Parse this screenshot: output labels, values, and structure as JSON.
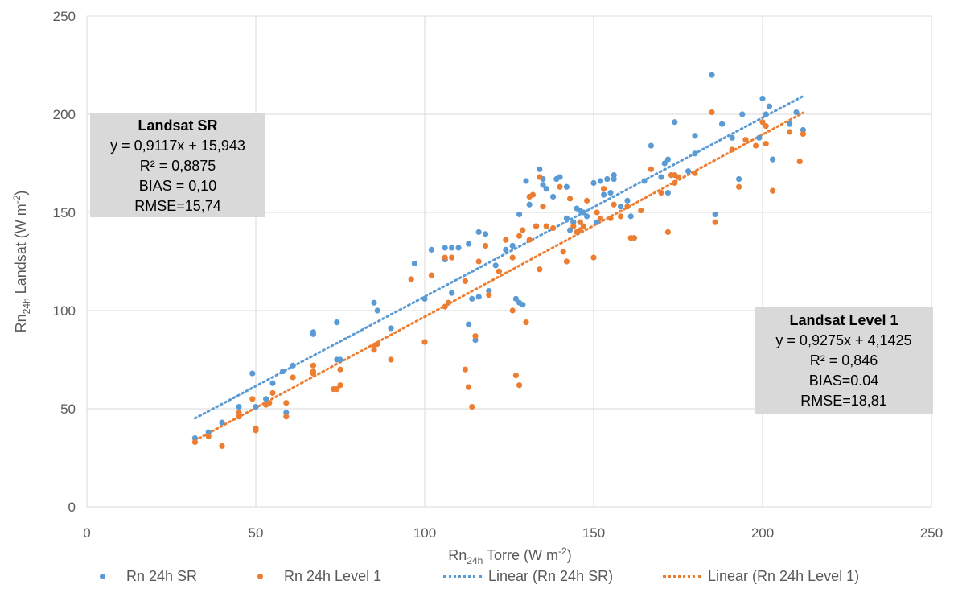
{
  "chart_data": {
    "type": "scatter",
    "xlabel": {
      "main1": "Rn",
      "sub": "24h",
      "main2": " Torre (W m",
      "sup": "-2",
      "end": ")"
    },
    "ylabel": {
      "main1": "Rn",
      "sub": "24h",
      "main2": " Landsat (W m",
      "sup": "-2",
      "end": ")"
    },
    "xlim": [
      0,
      250
    ],
    "ylim": [
      0,
      250
    ],
    "xticks": [
      "0",
      "50",
      "100",
      "150",
      "200",
      "250"
    ],
    "yticks": [
      "0",
      "50",
      "100",
      "150",
      "200",
      "250"
    ],
    "grid": true,
    "legend_position": "bottom",
    "series": [
      {
        "name": "Rn 24h SR",
        "color": "#5b9bd5",
        "points": [
          [
            32,
            35
          ],
          [
            36,
            38
          ],
          [
            40,
            43
          ],
          [
            45,
            51
          ],
          [
            49,
            68
          ],
          [
            50,
            51
          ],
          [
            53,
            55
          ],
          [
            55,
            63
          ],
          [
            58,
            69
          ],
          [
            59,
            48
          ],
          [
            61,
            72
          ],
          [
            67,
            89
          ],
          [
            67,
            88
          ],
          [
            74,
            75
          ],
          [
            74,
            94
          ],
          [
            75,
            75
          ],
          [
            85,
            104
          ],
          [
            86,
            100
          ],
          [
            90,
            91
          ],
          [
            97,
            124
          ],
          [
            100,
            106
          ],
          [
            102,
            131
          ],
          [
            106,
            132
          ],
          [
            106,
            126
          ],
          [
            108,
            109
          ],
          [
            108,
            132
          ],
          [
            110,
            132
          ],
          [
            113,
            134
          ],
          [
            113,
            93
          ],
          [
            114,
            106
          ],
          [
            115,
            85
          ],
          [
            116,
            107
          ],
          [
            116,
            140
          ],
          [
            118,
            139
          ],
          [
            119,
            110
          ],
          [
            121,
            123
          ],
          [
            124,
            131
          ],
          [
            126,
            133
          ],
          [
            127,
            106
          ],
          [
            128,
            149
          ],
          [
            129,
            103
          ],
          [
            128,
            104
          ],
          [
            130,
            166
          ],
          [
            131,
            154
          ],
          [
            133,
            143
          ],
          [
            134,
            172
          ],
          [
            135,
            167
          ],
          [
            135,
            164
          ],
          [
            136,
            162
          ],
          [
            138,
            158
          ],
          [
            139,
            167
          ],
          [
            140,
            168
          ],
          [
            142,
            147
          ],
          [
            142,
            163
          ],
          [
            143,
            141
          ],
          [
            144,
            145
          ],
          [
            145,
            152
          ],
          [
            146,
            151
          ],
          [
            146,
            145
          ],
          [
            147,
            150
          ],
          [
            148,
            148
          ],
          [
            150,
            165
          ],
          [
            151,
            145
          ],
          [
            152,
            166
          ],
          [
            153,
            159
          ],
          [
            154,
            167
          ],
          [
            155,
            160
          ],
          [
            156,
            167
          ],
          [
            156,
            169
          ],
          [
            158,
            153
          ],
          [
            160,
            156
          ],
          [
            161,
            148
          ],
          [
            162,
            137
          ],
          [
            165,
            166
          ],
          [
            167,
            184
          ],
          [
            170,
            168
          ],
          [
            171,
            175
          ],
          [
            172,
            160
          ],
          [
            172,
            177
          ],
          [
            173,
            169
          ],
          [
            174,
            196
          ],
          [
            178,
            171
          ],
          [
            180,
            189
          ],
          [
            180,
            180
          ],
          [
            185,
            220
          ],
          [
            186,
            149
          ],
          [
            188,
            195
          ],
          [
            191,
            188
          ],
          [
            193,
            167
          ],
          [
            194,
            200
          ],
          [
            199,
            188
          ],
          [
            200,
            208
          ],
          [
            201,
            200
          ],
          [
            202,
            204
          ],
          [
            203,
            177
          ],
          [
            208,
            195
          ],
          [
            210,
            201
          ],
          [
            212,
            192
          ]
        ]
      },
      {
        "name": "Rn 24h Level 1",
        "color": "#ed7d31",
        "points": [
          [
            32,
            33
          ],
          [
            36,
            36
          ],
          [
            40,
            31
          ],
          [
            45,
            46
          ],
          [
            45,
            48
          ],
          [
            49,
            55
          ],
          [
            50,
            40
          ],
          [
            50,
            39
          ],
          [
            53,
            52
          ],
          [
            54,
            53
          ],
          [
            55,
            58
          ],
          [
            59,
            46
          ],
          [
            59,
            53
          ],
          [
            61,
            66
          ],
          [
            67,
            72
          ],
          [
            67,
            68
          ],
          [
            67,
            69
          ],
          [
            73,
            60
          ],
          [
            74,
            60
          ],
          [
            75,
            62
          ],
          [
            75,
            70
          ],
          [
            85,
            80
          ],
          [
            85,
            82
          ],
          [
            86,
            83
          ],
          [
            90,
            75
          ],
          [
            96,
            116
          ],
          [
            100,
            84
          ],
          [
            102,
            118
          ],
          [
            106,
            127
          ],
          [
            106,
            102
          ],
          [
            107,
            104
          ],
          [
            108,
            127
          ],
          [
            112,
            115
          ],
          [
            112,
            70
          ],
          [
            113,
            61
          ],
          [
            114,
            51
          ],
          [
            115,
            87
          ],
          [
            116,
            125
          ],
          [
            118,
            133
          ],
          [
            119,
            108
          ],
          [
            122,
            120
          ],
          [
            124,
            136
          ],
          [
            126,
            127
          ],
          [
            126,
            100
          ],
          [
            127,
            67
          ],
          [
            128,
            138
          ],
          [
            128,
            62
          ],
          [
            129,
            141
          ],
          [
            130,
            94
          ],
          [
            131,
            158
          ],
          [
            131,
            136
          ],
          [
            132,
            159
          ],
          [
            133,
            143
          ],
          [
            134,
            168
          ],
          [
            134,
            121
          ],
          [
            135,
            153
          ],
          [
            136,
            143
          ],
          [
            138,
            142
          ],
          [
            140,
            163
          ],
          [
            141,
            130
          ],
          [
            142,
            125
          ],
          [
            143,
            157
          ],
          [
            144,
            143
          ],
          [
            145,
            140
          ],
          [
            146,
            141
          ],
          [
            146,
            145
          ],
          [
            147,
            143
          ],
          [
            148,
            156
          ],
          [
            150,
            127
          ],
          [
            151,
            150
          ],
          [
            152,
            147
          ],
          [
            153,
            162
          ],
          [
            155,
            147
          ],
          [
            156,
            154
          ],
          [
            158,
            148
          ],
          [
            160,
            153
          ],
          [
            161,
            137
          ],
          [
            162,
            137
          ],
          [
            164,
            151
          ],
          [
            167,
            172
          ],
          [
            170,
            160
          ],
          [
            172,
            140
          ],
          [
            173,
            169
          ],
          [
            174,
            169
          ],
          [
            174,
            165
          ],
          [
            175,
            168
          ],
          [
            180,
            170
          ],
          [
            185,
            201
          ],
          [
            186,
            145
          ],
          [
            191,
            182
          ],
          [
            193,
            163
          ],
          [
            195,
            187
          ],
          [
            198,
            184
          ],
          [
            200,
            196
          ],
          [
            201,
            194
          ],
          [
            201,
            185
          ],
          [
            203,
            161
          ],
          [
            208,
            191
          ],
          [
            211,
            176
          ],
          [
            212,
            190
          ]
        ]
      },
      {
        "name": "Linear (Rn 24h SR)",
        "color": "#5b9bd5",
        "trend": {
          "slope": 0.9117,
          "intercept": 15.943,
          "x_range": [
            32,
            212
          ]
        }
      },
      {
        "name": "Linear (Rn 24h Level 1)",
        "color": "#ed7d31",
        "trend": {
          "slope": 0.9275,
          "intercept": 4.1425,
          "x_range": [
            32,
            212
          ]
        }
      }
    ],
    "annotations": [
      {
        "title": "Landsat SR",
        "lines": [
          "y = 0,9117x + 15,943",
          "R² = 0,8875",
          "BIAS = 0,10",
          "RMSE=15,74"
        ]
      },
      {
        "title": "Landsat Level 1",
        "lines": [
          "y = 0,9275x + 4,1425",
          "R² = 0,846",
          "BIAS=0.04",
          "RMSE=18,81"
        ]
      }
    ]
  }
}
